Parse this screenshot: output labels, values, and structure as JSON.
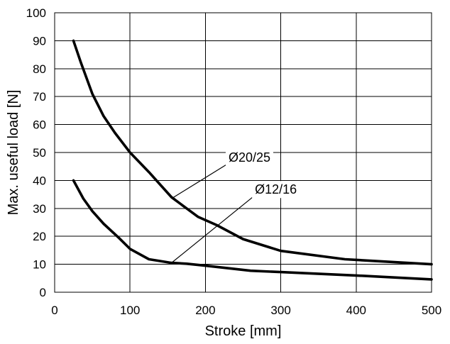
{
  "chart_data": {
    "type": "line",
    "title": "",
    "xlabel": "Stroke [mm]",
    "ylabel": "Max. useful load [N]",
    "xlim": [
      0,
      500
    ],
    "ylim": [
      0,
      100
    ],
    "xticks": [
      0,
      100,
      200,
      300,
      400,
      500
    ],
    "yticks": [
      0,
      10,
      20,
      30,
      40,
      50,
      60,
      70,
      80,
      90,
      100
    ],
    "grid": true,
    "legend": "none",
    "series": [
      {
        "label": "Ø20/25",
        "x": [
          25,
          35,
          50,
          65,
          80,
          100,
          125,
          155,
          175,
          190,
          215,
          250,
          300,
          385,
          500
        ],
        "y": [
          90,
          82,
          71,
          63,
          57,
          50,
          43,
          34,
          30,
          27,
          24,
          19,
          14.8,
          11.8,
          10
        ]
      },
      {
        "label": "Ø12/16",
        "x": [
          25,
          38,
          50,
          65,
          85,
          100,
          125,
          155,
          175,
          200,
          260,
          300,
          400,
          500
        ],
        "y": [
          40,
          33.5,
          29,
          24.5,
          19.5,
          15.5,
          11.8,
          10.5,
          10.2,
          9.5,
          7.7,
          7.2,
          6,
          4.6
        ]
      }
    ],
    "annotations": [
      {
        "text": "Ø20/25",
        "target": [
          155,
          33.5
        ],
        "text_at": [
          225,
          48.5
        ]
      },
      {
        "text": "Ø12/16",
        "target": [
          155,
          10.5
        ],
        "text_at": [
          260,
          37
        ]
      }
    ]
  }
}
